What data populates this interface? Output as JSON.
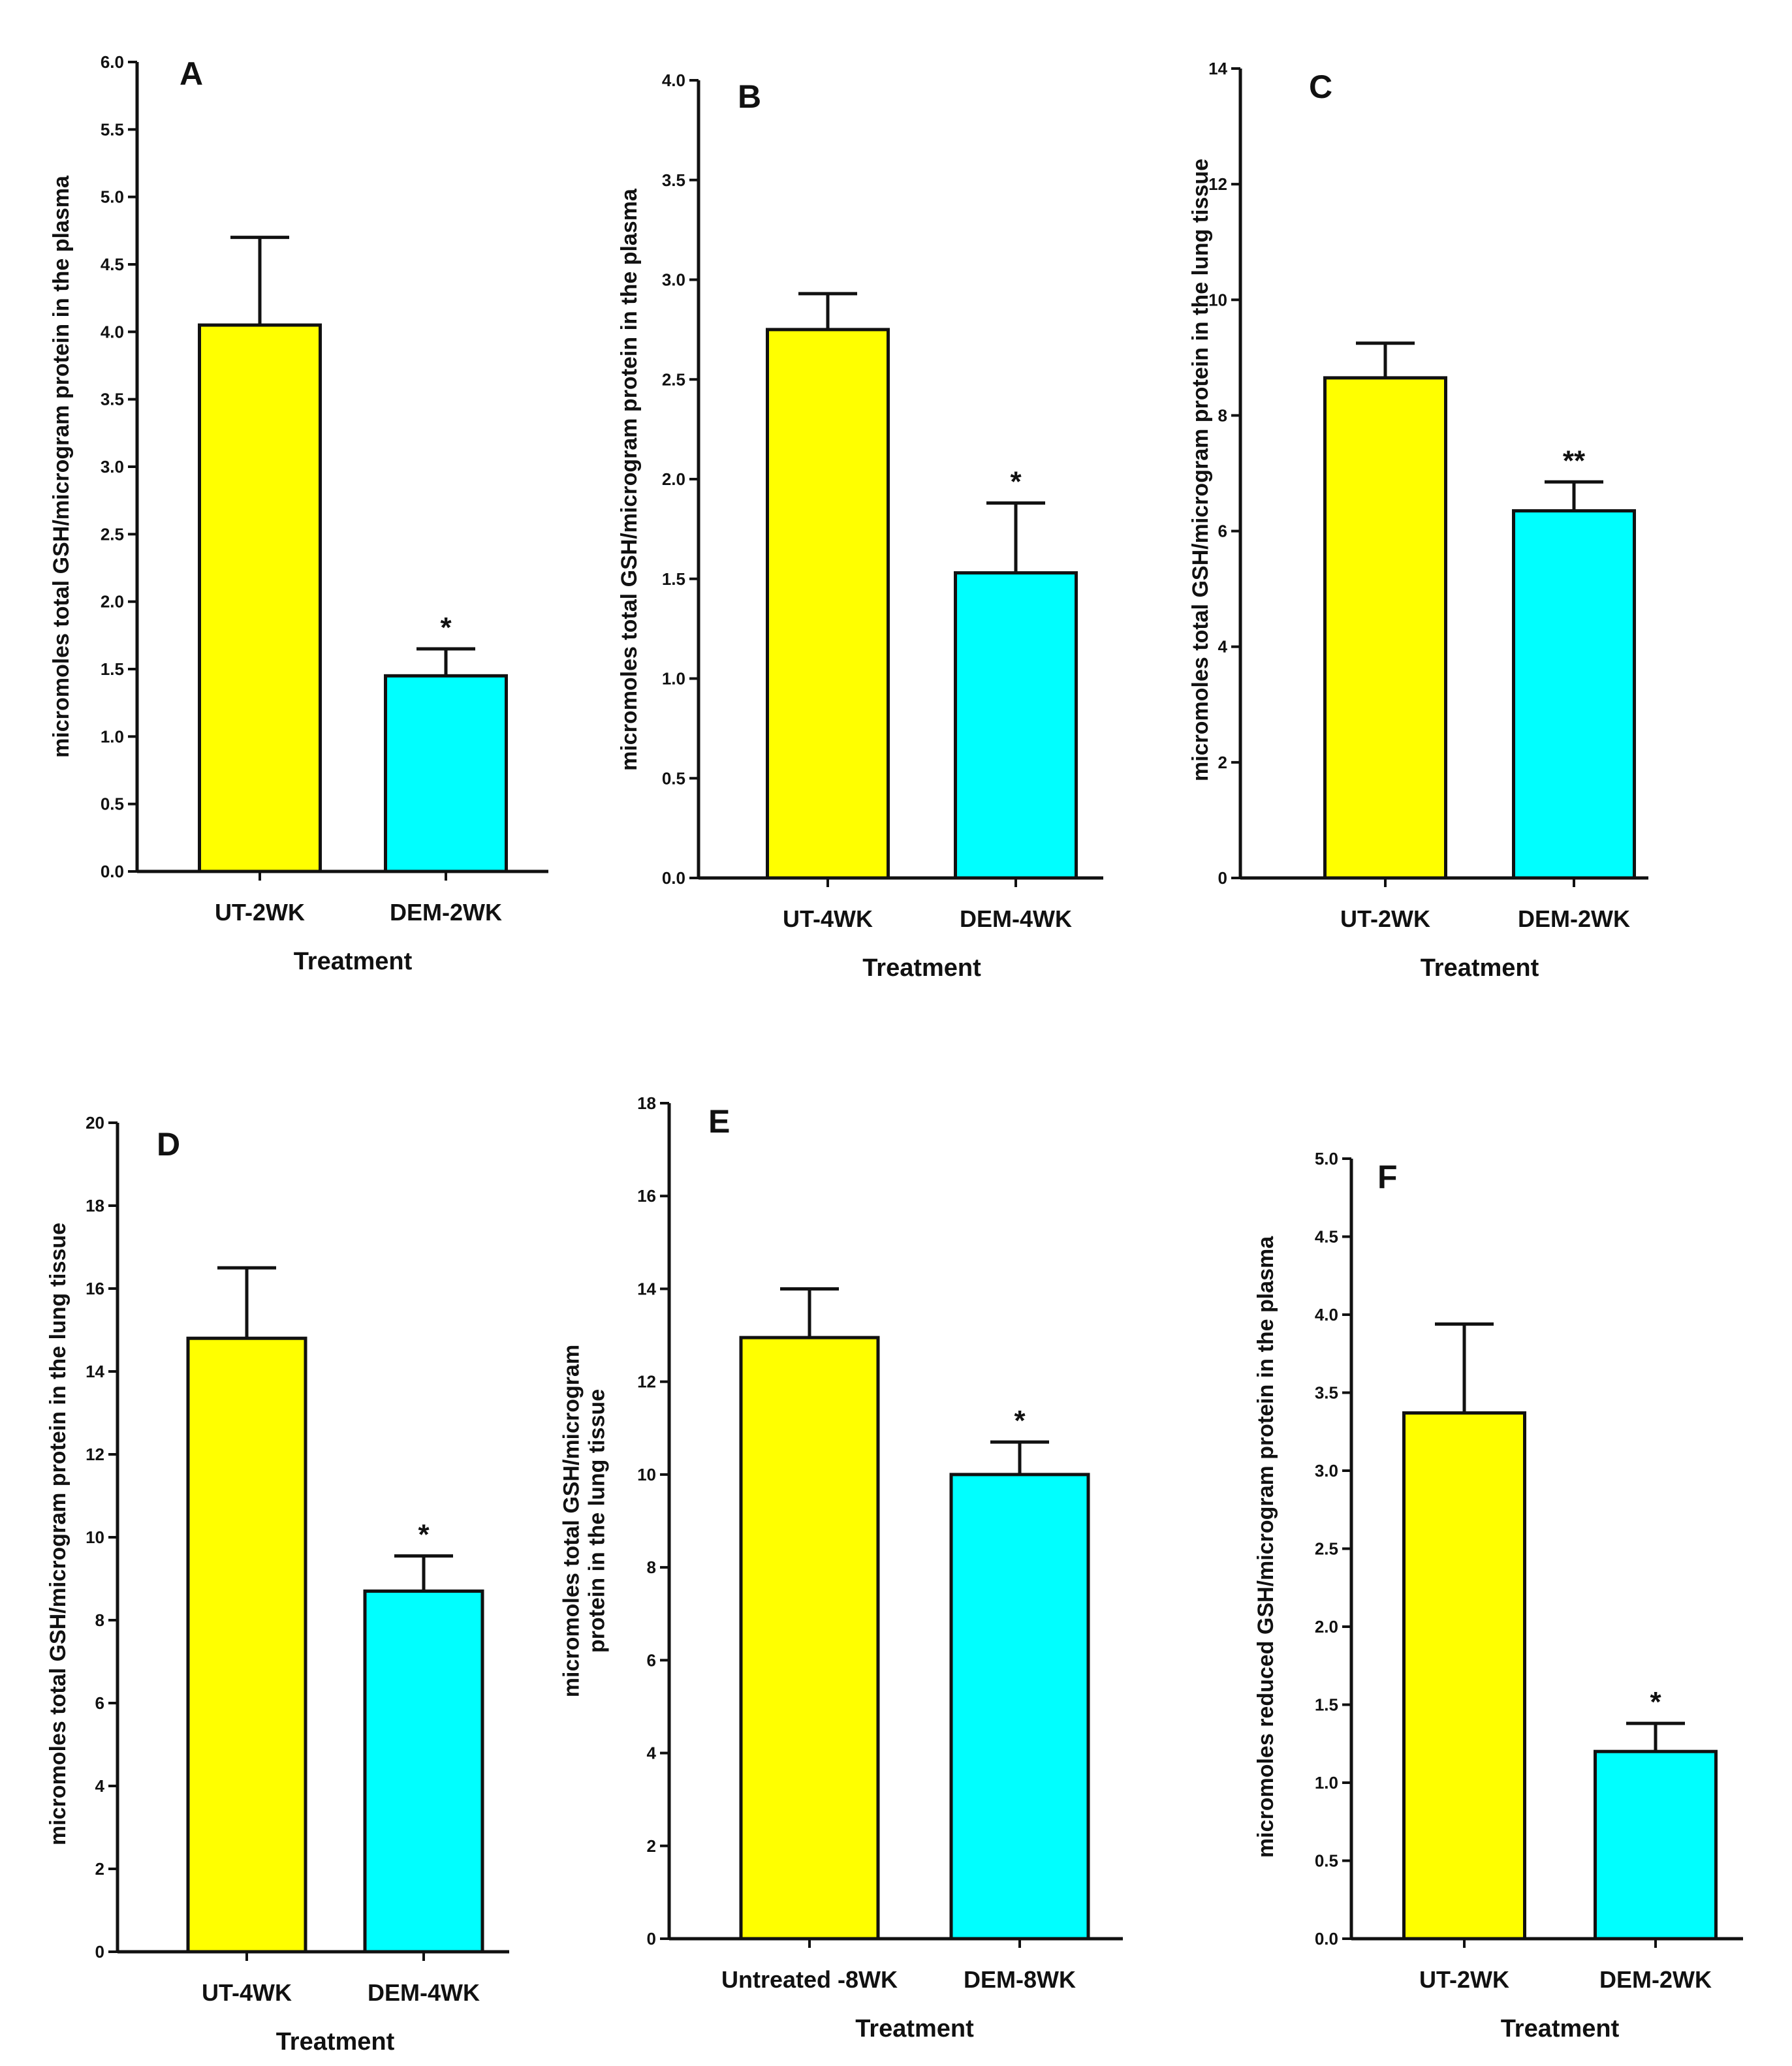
{
  "colors": {
    "ut": "#ffff00",
    "dem": "#00ffff",
    "axis": "#111111"
  },
  "chart_data": [
    {
      "type": "bar",
      "panel": "A",
      "categories": [
        "UT-2WK",
        "DEM-2WK"
      ],
      "values": [
        4.05,
        1.45
      ],
      "errors": [
        0.65,
        0.2
      ],
      "significance": [
        "",
        "*"
      ],
      "ylim": [
        0,
        6
      ],
      "yticks": [
        "0.0",
        "0.5",
        "1.0",
        "1.5",
        "2.0",
        "2.5",
        "3.0",
        "3.5",
        "4.0",
        "4.5",
        "5.0",
        "5.5",
        "6.0"
      ],
      "xlabel": "Treatment",
      "ylabel": "micromoles total GSH/microgram protein in the plasma"
    },
    {
      "type": "bar",
      "panel": "B",
      "categories": [
        "UT-4WK",
        "DEM-4WK"
      ],
      "values": [
        2.75,
        1.53
      ],
      "errors": [
        0.18,
        0.35
      ],
      "significance": [
        "",
        "*"
      ],
      "ylim": [
        0,
        4
      ],
      "yticks": [
        "0.0",
        "0.5",
        "1.0",
        "1.5",
        "2.0",
        "2.5",
        "3.0",
        "3.5",
        "4.0"
      ],
      "xlabel": "Treatment",
      "ylabel": "micromoles total GSH/microgram protein in the plasma"
    },
    {
      "type": "bar",
      "panel": "C",
      "categories": [
        "UT-2WK",
        "DEM-2WK"
      ],
      "values": [
        8.65,
        6.35
      ],
      "errors": [
        0.6,
        0.5
      ],
      "significance": [
        "",
        "**"
      ],
      "ylim": [
        0,
        14
      ],
      "yticks": [
        "0",
        "2",
        "4",
        "6",
        "8",
        "10",
        "12",
        "14"
      ],
      "xlabel": "Treatment",
      "ylabel": "micromoles total GSH/microgram protein in the lung tissue"
    },
    {
      "type": "bar",
      "panel": "D",
      "categories": [
        "UT-4WK",
        "DEM-4WK"
      ],
      "values": [
        14.8,
        8.7
      ],
      "errors": [
        1.7,
        0.85
      ],
      "significance": [
        "",
        "*"
      ],
      "ylim": [
        0,
        20
      ],
      "yticks": [
        "0",
        "2",
        "4",
        "6",
        "8",
        "10",
        "12",
        "14",
        "16",
        "18",
        "20"
      ],
      "xlabel": "Treatment",
      "ylabel": "micromoles total GSH/microgram protein in the lung tissue"
    },
    {
      "type": "bar",
      "panel": "E",
      "categories": [
        "Untreated -8WK",
        "DEM-8WK"
      ],
      "values": [
        12.95,
        10.0
      ],
      "errors": [
        1.05,
        0.7
      ],
      "significance": [
        "",
        "*"
      ],
      "ylim": [
        0,
        18
      ],
      "yticks": [
        "0",
        "2",
        "4",
        "6",
        "8",
        "10",
        "12",
        "14",
        "16",
        "18"
      ],
      "xlabel": "Treatment",
      "ylabel": [
        "micromoles total GSH/microgram",
        "protein in the lung tissue"
      ]
    },
    {
      "type": "bar",
      "panel": "F",
      "categories": [
        "UT-2WK",
        "DEM-2WK"
      ],
      "values": [
        3.37,
        1.2
      ],
      "errors": [
        0.57,
        0.18
      ],
      "significance": [
        "",
        "*"
      ],
      "ylim": [
        0,
        5
      ],
      "yticks": [
        "0.0",
        "0.5",
        "1.0",
        "1.5",
        "2.0",
        "2.5",
        "3.0",
        "3.5",
        "4.0",
        "4.5",
        "5.0"
      ],
      "xlabel": "Treatment",
      "ylabel": "micromoles reduced GSH/microgram protein in the plasma"
    }
  ]
}
